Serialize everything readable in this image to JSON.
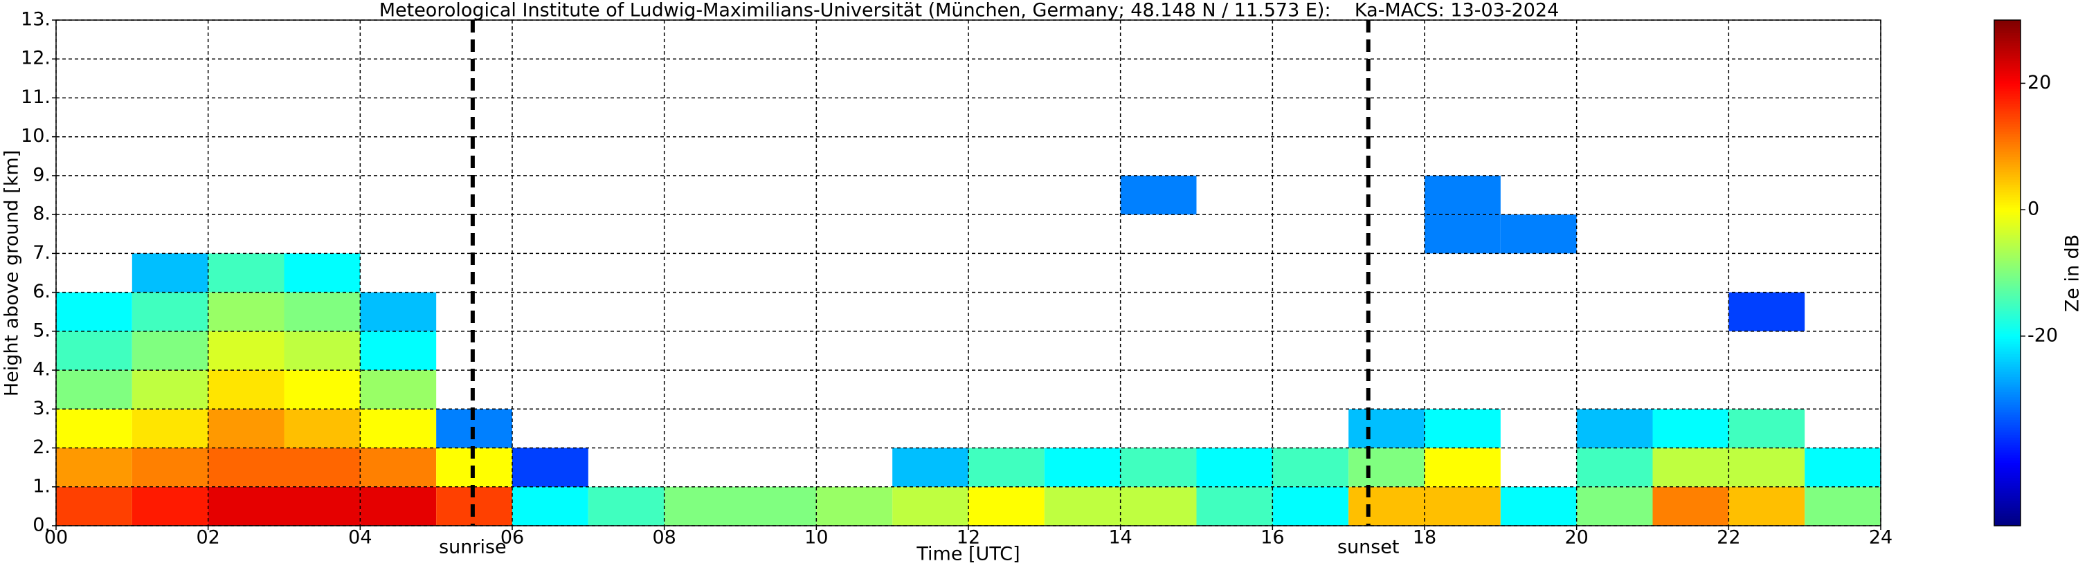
{
  "chart_data": {
    "type": "heatmap",
    "title": "Meteorological Institute of Ludwig-Maximilians-Universität (München, Germany; 48.148 N / 11.573 E):    Ka-MACS: 13-03-2024",
    "xlabel": "Time [UTC]",
    "ylabel": "Height above ground [km]",
    "colorbar_label": "Ze in dB",
    "colormap": "jet",
    "xlim": [
      0,
      24
    ],
    "ylim": [
      0,
      13
    ],
    "clim": [
      -50,
      30
    ],
    "grid": true,
    "xticks": [
      {
        "value": 0,
        "label": "00"
      },
      {
        "value": 2,
        "label": "02"
      },
      {
        "value": 4,
        "label": "04"
      },
      {
        "value": 6,
        "label": "06"
      },
      {
        "value": 8,
        "label": "08"
      },
      10,
      12,
      14,
      16,
      18,
      20,
      22,
      24
    ],
    "yticks": [
      {
        "value": 0,
        "label": "0."
      },
      {
        "value": 1,
        "label": "1."
      },
      {
        "value": 2,
        "label": "2."
      },
      {
        "value": 3,
        "label": "3."
      },
      {
        "value": 4,
        "label": "4."
      },
      {
        "value": 5,
        "label": "5."
      },
      {
        "value": 6,
        "label": "6."
      },
      {
        "value": 7,
        "label": "7."
      },
      {
        "value": 8,
        "label": "8."
      },
      {
        "value": 9,
        "label": "9."
      },
      {
        "value": 10,
        "label": "10."
      },
      {
        "value": 11,
        "label": "11."
      },
      {
        "value": 12,
        "label": "12."
      },
      {
        "value": 13,
        "label": "13."
      }
    ],
    "cticks": [
      -20,
      0,
      20
    ],
    "xbins": [
      0,
      1,
      2,
      3,
      4,
      5,
      6,
      7,
      8,
      9,
      10,
      11,
      12,
      13,
      14,
      15,
      16,
      17,
      18,
      19,
      20,
      21,
      22,
      23,
      24
    ],
    "ybins": [
      0,
      1,
      2,
      3,
      4,
      5,
      6,
      7,
      8,
      9,
      10,
      11,
      12,
      13
    ],
    "z": [
      [
        15,
        18,
        22,
        22,
        22,
        15,
        -20,
        -15,
        -10,
        -10,
        -8,
        -5,
        0,
        -5,
        -5,
        -15,
        -20,
        5,
        5,
        -20,
        -10,
        10,
        5,
        -10
      ],
      [
        8,
        10,
        12,
        12,
        10,
        0,
        -35,
        null,
        null,
        null,
        null,
        -25,
        -15,
        -20,
        -15,
        -20,
        -15,
        -10,
        0,
        null,
        -15,
        -5,
        -5,
        -20
      ],
      [
        0,
        2,
        8,
        5,
        0,
        -30,
        null,
        null,
        null,
        null,
        null,
        null,
        null,
        null,
        null,
        null,
        null,
        -25,
        -20,
        null,
        -25,
        -20,
        -15,
        null
      ],
      [
        -10,
        -5,
        2,
        0,
        -8,
        null,
        null,
        null,
        null,
        null,
        null,
        null,
        null,
        null,
        null,
        null,
        null,
        null,
        null,
        null,
        null,
        null,
        null,
        null
      ],
      [
        -15,
        -10,
        -3,
        -5,
        -20,
        null,
        null,
        null,
        null,
        null,
        null,
        null,
        null,
        null,
        null,
        null,
        null,
        null,
        null,
        null,
        null,
        null,
        null,
        null
      ],
      [
        -20,
        -15,
        -8,
        -10,
        -25,
        null,
        null,
        null,
        null,
        null,
        null,
        null,
        null,
        null,
        null,
        null,
        null,
        null,
        null,
        null,
        null,
        null,
        -35,
        null
      ],
      [
        null,
        -25,
        -15,
        -20,
        null,
        null,
        null,
        null,
        null,
        null,
        null,
        null,
        null,
        null,
        null,
        null,
        null,
        null,
        null,
        null,
        null,
        null,
        null,
        null
      ],
      [
        null,
        null,
        null,
        null,
        null,
        null,
        null,
        null,
        null,
        null,
        null,
        null,
        null,
        null,
        null,
        null,
        null,
        null,
        -30,
        -30,
        null,
        null,
        null,
        null
      ],
      [
        null,
        null,
        null,
        null,
        null,
        null,
        null,
        null,
        null,
        null,
        null,
        null,
        null,
        null,
        -30,
        null,
        null,
        null,
        -30,
        null,
        null,
        null,
        null,
        null
      ],
      [
        null,
        null,
        null,
        null,
        null,
        null,
        null,
        null,
        null,
        null,
        null,
        null,
        null,
        null,
        null,
        null,
        null,
        null,
        null,
        null,
        null,
        null,
        null,
        null
      ],
      [
        null,
        null,
        null,
        null,
        null,
        null,
        null,
        null,
        null,
        null,
        null,
        null,
        null,
        null,
        null,
        null,
        null,
        null,
        null,
        null,
        null,
        null,
        null,
        null
      ],
      [
        null,
        null,
        null,
        null,
        null,
        null,
        null,
        null,
        null,
        null,
        null,
        null,
        null,
        null,
        null,
        null,
        null,
        null,
        null,
        null,
        null,
        null,
        null,
        null
      ],
      [
        null,
        null,
        null,
        null,
        null,
        null,
        null,
        null,
        null,
        null,
        null,
        null,
        null,
        null,
        null,
        null,
        null,
        null,
        null,
        null,
        null,
        null,
        null,
        null
      ]
    ],
    "annotations": [
      {
        "text": "sunrise",
        "x": 5.48
      },
      {
        "text": "sunset",
        "x": 17.26
      }
    ]
  }
}
